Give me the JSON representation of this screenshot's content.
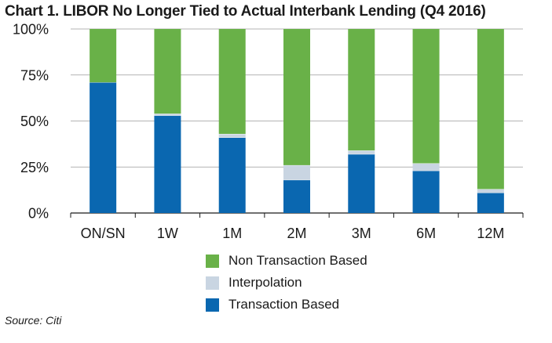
{
  "chart_data": {
    "type": "bar",
    "stacked": true,
    "title": "Chart 1. LIBOR No Longer Tied to Actual Interbank Lending (Q4 2016)",
    "xlabel": "",
    "ylabel": "",
    "categories": [
      "ON/SN",
      "1W",
      "1M",
      "2M",
      "3M",
      "6M",
      "12M"
    ],
    "yticks": [
      "0%",
      "25%",
      "50%",
      "75%",
      "100%"
    ],
    "ylim": [
      0,
      100
    ],
    "grid": true,
    "legend_position": "bottom",
    "series": [
      {
        "name": "Transaction Based",
        "color": "#0a67b0",
        "values": [
          71,
          53,
          41,
          18,
          32,
          23,
          11
        ]
      },
      {
        "name": "Interpolation",
        "color": "#c9d5e2",
        "values": [
          0,
          1,
          2,
          8,
          2,
          4,
          2
        ]
      },
      {
        "name": "Non Transaction Based",
        "color": "#69b148",
        "values": [
          29,
          46,
          57,
          74,
          66,
          73,
          87
        ]
      }
    ],
    "legend_order": [
      "Non Transaction Based",
      "Interpolation",
      "Transaction Based"
    ]
  },
  "source": "Source: Citi"
}
